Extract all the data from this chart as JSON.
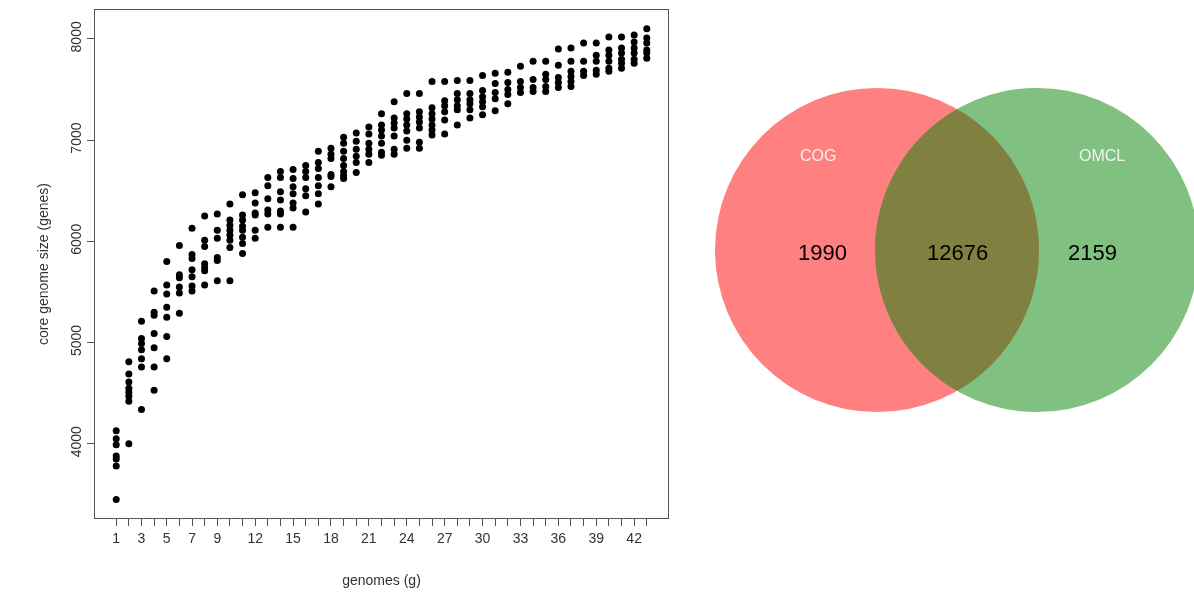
{
  "chart_data": [
    {
      "type": "scatter",
      "xlabel": "genomes (g)",
      "ylabel": "core genome size (genes)",
      "color": "#000000",
      "marker": "circle",
      "x": [
        1,
        1,
        1,
        1,
        1,
        1,
        1,
        2,
        2,
        2,
        2,
        2,
        2,
        2,
        2,
        3,
        3,
        3,
        3,
        3,
        3,
        3,
        4,
        4,
        4,
        4,
        4,
        4,
        4,
        5,
        5,
        5,
        5,
        5,
        5,
        5,
        6,
        6,
        6,
        6,
        6,
        6,
        7,
        7,
        7,
        7,
        7,
        7,
        7,
        8,
        8,
        8,
        8,
        8,
        8,
        8,
        9,
        9,
        9,
        9,
        9,
        9,
        10,
        10,
        10,
        10,
        10,
        10,
        10,
        10,
        11,
        11,
        11,
        11,
        11,
        11,
        11,
        11,
        12,
        12,
        12,
        12,
        12,
        12,
        13,
        13,
        13,
        13,
        13,
        13,
        14,
        14,
        14,
        14,
        14,
        14,
        14,
        15,
        15,
        15,
        15,
        15,
        15,
        15,
        16,
        16,
        16,
        16,
        16,
        16,
        17,
        17,
        17,
        17,
        17,
        17,
        17,
        18,
        18,
        18,
        18,
        18,
        18,
        19,
        19,
        19,
        19,
        19,
        19,
        19,
        19,
        20,
        20,
        20,
        20,
        20,
        20,
        21,
        21,
        21,
        21,
        21,
        21,
        22,
        22,
        22,
        22,
        22,
        22,
        22,
        23,
        23,
        23,
        23,
        23,
        23,
        23,
        24,
        24,
        24,
        24,
        24,
        24,
        24,
        25,
        25,
        25,
        25,
        25,
        25,
        25,
        26,
        26,
        26,
        26,
        26,
        26,
        26,
        27,
        27,
        27,
        27,
        27,
        27,
        28,
        28,
        28,
        28,
        28,
        28,
        29,
        29,
        29,
        29,
        29,
        29,
        30,
        30,
        30,
        30,
        30,
        30,
        31,
        31,
        31,
        31,
        31,
        32,
        32,
        32,
        32,
        32,
        33,
        33,
        33,
        33,
        34,
        34,
        34,
        34,
        35,
        35,
        35,
        35,
        35,
        36,
        36,
        36,
        36,
        36,
        37,
        37,
        37,
        37,
        37,
        37,
        38,
        38,
        38,
        38,
        39,
        39,
        39,
        39,
        39,
        40,
        40,
        40,
        40,
        40,
        40,
        41,
        41,
        41,
        41,
        41,
        41,
        42,
        42,
        42,
        42,
        42,
        42,
        43,
        43,
        43,
        43,
        43,
        43
      ],
      "values": [
        4130,
        4050,
        3990,
        3880,
        3850,
        3780,
        3450,
        4810,
        4690,
        4610,
        4550,
        4510,
        4470,
        4420,
        4000,
        5210,
        5040,
        4990,
        4930,
        4840,
        4760,
        4340,
        5510,
        5300,
        5270,
        5090,
        4950,
        4760,
        4530,
        5800,
        5570,
        5480,
        5350,
        5250,
        5060,
        4840,
        5960,
        5670,
        5640,
        5550,
        5490,
        5290,
        6130,
        5870,
        5830,
        5720,
        5650,
        5560,
        5510,
        6250,
        6010,
        5950,
        5780,
        5740,
        5710,
        5570,
        6270,
        6110,
        6030,
        5840,
        5810,
        5610,
        6370,
        6210,
        6160,
        6110,
        6060,
        6010,
        5940,
        5610,
        6460,
        6260,
        6210,
        6150,
        6110,
        6040,
        5980,
        5880,
        6480,
        6380,
        6280,
        6260,
        6110,
        6030,
        6630,
        6550,
        6420,
        6310,
        6270,
        6140,
        6690,
        6630,
        6490,
        6410,
        6300,
        6270,
        6140,
        6710,
        6620,
        6540,
        6470,
        6380,
        6330,
        6140,
        6750,
        6690,
        6630,
        6520,
        6450,
        6290,
        6890,
        6780,
        6720,
        6630,
        6550,
        6470,
        6370,
        6920,
        6860,
        6820,
        6660,
        6640,
        6540,
        7030,
        6970,
        6890,
        6820,
        6750,
        6690,
        6650,
        6620,
        7070,
        6990,
        6910,
        6840,
        6780,
        6680,
        7130,
        7060,
        6970,
        6910,
        6860,
        6780,
        7260,
        7150,
        7100,
        7040,
        6970,
        6880,
        6850,
        7380,
        7220,
        7170,
        7120,
        7040,
        6910,
        6860,
        7460,
        7260,
        7210,
        7150,
        7090,
        7000,
        6920,
        7460,
        7280,
        7230,
        7180,
        7120,
        6980,
        6920,
        7580,
        7320,
        7260,
        7210,
        7150,
        7100,
        7050,
        7580,
        7390,
        7340,
        7280,
        7200,
        7060,
        7590,
        7460,
        7400,
        7340,
        7300,
        7150,
        7590,
        7460,
        7400,
        7360,
        7300,
        7220,
        7640,
        7490,
        7430,
        7380,
        7330,
        7250,
        7660,
        7560,
        7470,
        7410,
        7290,
        7670,
        7570,
        7500,
        7450,
        7360,
        7730,
        7580,
        7520,
        7470,
        7780,
        7600,
        7520,
        7480,
        7780,
        7650,
        7600,
        7530,
        7480,
        7900,
        7740,
        7620,
        7570,
        7520,
        7910,
        7780,
        7680,
        7630,
        7580,
        7530,
        7960,
        7780,
        7680,
        7640,
        7960,
        7840,
        7780,
        7690,
        7650,
        8020,
        7890,
        7840,
        7780,
        7710,
        7680,
        8020,
        7910,
        7860,
        7800,
        7760,
        7710,
        8040,
        7970,
        7910,
        7860,
        7800,
        7760,
        8100,
        8010,
        7960,
        7890,
        7860,
        7810
      ],
      "xlim": [
        -0.68,
        44.68
      ],
      "ylim": [
        3267,
        8286
      ],
      "xticks": [
        1,
        {
          "value": 2,
          "label": null
        },
        3,
        {
          "value": 4,
          "label": null
        },
        5,
        {
          "value": 6,
          "label": null
        },
        7,
        {
          "value": 8,
          "label": null
        },
        9,
        {
          "value": 10,
          "label": null
        },
        {
          "value": 11,
          "label": null
        },
        12,
        {
          "value": 13,
          "label": null
        },
        {
          "value": 14,
          "label": null
        },
        15,
        {
          "value": 16,
          "label": null
        },
        {
          "value": 17,
          "label": null
        },
        18,
        {
          "value": 19,
          "label": null
        },
        {
          "value": 20,
          "label": null
        },
        21,
        {
          "value": 22,
          "label": null
        },
        {
          "value": 23,
          "label": null
        },
        24,
        {
          "value": 25,
          "label": null
        },
        {
          "value": 26,
          "label": null
        },
        27,
        {
          "value": 28,
          "label": null
        },
        {
          "value": 29,
          "label": null
        },
        30,
        {
          "value": 31,
          "label": null
        },
        {
          "value": 32,
          "label": null
        },
        33,
        {
          "value": 34,
          "label": null
        },
        {
          "value": 35,
          "label": null
        },
        36,
        {
          "value": 37,
          "label": null
        },
        {
          "value": 38,
          "label": null
        },
        39,
        {
          "value": 40,
          "label": null
        },
        {
          "value": 41,
          "label": null
        },
        42,
        {
          "value": 43,
          "label": null
        }
      ],
      "yticks": [
        4000,
        5000,
        6000,
        7000,
        8000
      ]
    },
    {
      "type": "other",
      "categories": [
        "COG",
        null,
        "OMCL"
      ],
      "values": [
        1990,
        12676,
        2159
      ],
      "colors": [
        "#ff8080",
        "#808040",
        "#80c080"
      ],
      "data_labels": true
    }
  ]
}
